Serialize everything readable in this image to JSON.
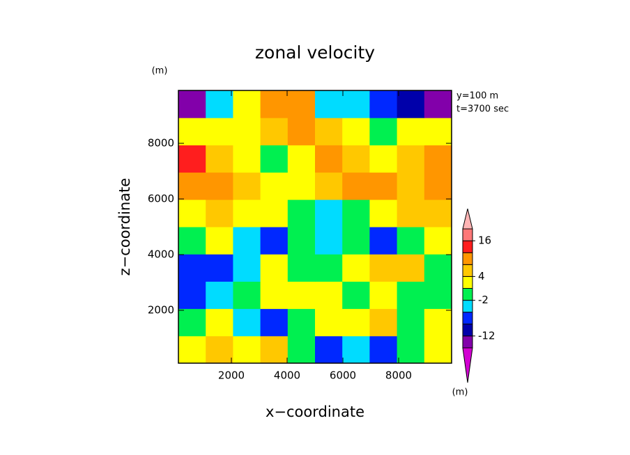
{
  "chart_data": {
    "type": "contour",
    "title": "zonal velocity",
    "xlabel": "x−coordinate",
    "ylabel": "z−coordinate",
    "y_unit": "(m)",
    "colorbar_unit": "(m)",
    "annotations": [
      "y=100 m",
      "t=3700 sec"
    ],
    "x": [
      590,
      1570,
      2550,
      3530,
      4510,
      5490,
      6470,
      7450,
      8430,
      9410
    ],
    "y": [
      590,
      1570,
      2550,
      3530,
      4510,
      5490,
      6470,
      7450,
      8430,
      9410
    ],
    "z": [
      [
        3,
        6,
        3,
        6,
        0,
        -6,
        -3,
        -6,
        0,
        3
      ],
      [
        0,
        3,
        -3,
        -6,
        0,
        3,
        3,
        6,
        0,
        3
      ],
      [
        -6,
        -3,
        0,
        3,
        3,
        3,
        0,
        3,
        0,
        0
      ],
      [
        -6,
        -6,
        -3,
        3,
        0,
        0,
        3,
        6,
        6,
        0
      ],
      [
        0,
        3,
        -3,
        -6,
        0,
        -3,
        0,
        -6,
        0,
        3
      ],
      [
        3,
        6,
        3,
        3,
        0,
        -3,
        0,
        3,
        6,
        6
      ],
      [
        10,
        9,
        6,
        3,
        3,
        6,
        9,
        9,
        6,
        9
      ],
      [
        13,
        6,
        3,
        0,
        3,
        9,
        6,
        3,
        6,
        9
      ],
      [
        3,
        3,
        3,
        6,
        9,
        6,
        3,
        0,
        3,
        3
      ],
      [
        -14,
        -3,
        3,
        9,
        9,
        -3,
        -3,
        -6,
        -10,
        -14
      ]
    ],
    "xlim": [
      100,
      9900
    ],
    "ylim": [
      100,
      9900
    ],
    "xticks": [
      2000,
      4000,
      6000,
      8000
    ],
    "yticks": [
      2000,
      4000,
      6000,
      8000
    ],
    "levels": [
      -16,
      -12,
      -8,
      -4,
      -2,
      2,
      4,
      8,
      12,
      16,
      20
    ],
    "colors": [
      "#d200d2",
      "#8200aa",
      "#0000aa",
      "#0028ff",
      "#00dcff",
      "#00f050",
      "#ffff00",
      "#ffc800",
      "#ff9600",
      "#ff1e1e",
      "#ff7878",
      "#ffb4b4"
    ],
    "colorbar_ticks": [
      16,
      4,
      -2,
      -12
    ]
  }
}
